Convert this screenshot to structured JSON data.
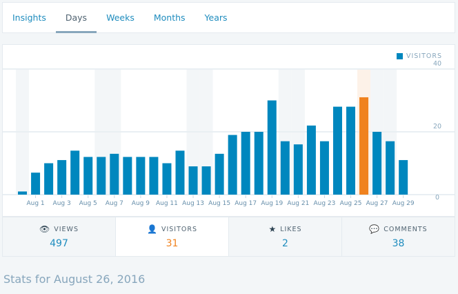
{
  "tabs": [
    {
      "label": "Insights"
    },
    {
      "label": "Days",
      "active": true
    },
    {
      "label": "Weeks"
    },
    {
      "label": "Months"
    },
    {
      "label": "Years"
    }
  ],
  "colors": {
    "bar": "#0087be",
    "highlight": "#f0821e",
    "weekend_band": "#f3f6f8",
    "highlight_band": "#fdf2e8"
  },
  "chart_data": {
    "type": "bar",
    "legend": "VISITORS",
    "legend_position": "top-right",
    "categories": [
      "Jul 31",
      "Aug 1",
      "Aug 2",
      "Aug 3",
      "Aug 4",
      "Aug 5",
      "Aug 6",
      "Aug 7",
      "Aug 8",
      "Aug 9",
      "Aug 10",
      "Aug 11",
      "Aug 12",
      "Aug 13",
      "Aug 14",
      "Aug 15",
      "Aug 16",
      "Aug 17",
      "Aug 18",
      "Aug 19",
      "Aug 20",
      "Aug 21",
      "Aug 22",
      "Aug 23",
      "Aug 24",
      "Aug 25",
      "Aug 26",
      "Aug 27",
      "Aug 28",
      "Aug 29"
    ],
    "x_tick_labels": [
      "Aug 1",
      "Aug 3",
      "Aug 5",
      "Aug 7",
      "Aug 9",
      "Aug 11",
      "Aug 13",
      "Aug 15",
      "Aug 17",
      "Aug 19",
      "Aug 21",
      "Aug 23",
      "Aug 25",
      "Aug 27",
      "Aug 29"
    ],
    "values": [
      1,
      7,
      10,
      11,
      14,
      12,
      12,
      13,
      12,
      12,
      12,
      10,
      14,
      9,
      9,
      13,
      19,
      20,
      20,
      30,
      17,
      16,
      22,
      17,
      28,
      28,
      31,
      20,
      17,
      11
    ],
    "weekend_categories": [
      "Jul 31",
      "Aug 6",
      "Aug 7",
      "Aug 13",
      "Aug 14",
      "Aug 20",
      "Aug 21",
      "Aug 27",
      "Aug 28"
    ],
    "highlighted": "Aug 26",
    "ylim": [
      0,
      40
    ],
    "y_ticks": [
      0,
      20,
      40
    ],
    "y_axis_side": "right",
    "grid": true
  },
  "summary": [
    {
      "label": "VIEWS",
      "value": "497",
      "icon": "eye-icon",
      "glyph": "👁"
    },
    {
      "label": "VISITORS",
      "value": "31",
      "icon": "person-icon",
      "glyph": "👤",
      "active": true
    },
    {
      "label": "LIKES",
      "value": "2",
      "icon": "star-icon",
      "glyph": "★"
    },
    {
      "label": "COMMENTS",
      "value": "38",
      "icon": "comment-icon",
      "glyph": "💬"
    }
  ],
  "stats_title": "Stats for August 26, 2016"
}
